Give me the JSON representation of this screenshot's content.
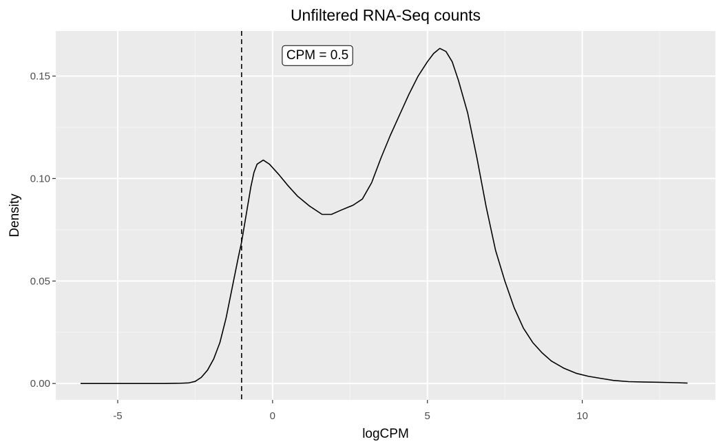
{
  "chart_data": {
    "type": "line",
    "title": "Unfiltered RNA-Seq counts",
    "xlabel": "logCPM",
    "ylabel": "Density",
    "xlim": [
      -7.0,
      14.3
    ],
    "ylim": [
      -0.008,
      0.172
    ],
    "x_ticks": [
      -5,
      0,
      5,
      10
    ],
    "x_tick_labels": [
      "-5",
      "0",
      "5",
      "10"
    ],
    "y_ticks": [
      0.0,
      0.05,
      0.1,
      0.15
    ],
    "y_tick_labels": [
      "0.00",
      "0.05",
      "0.10",
      "0.15"
    ],
    "grid": true,
    "legend": "none",
    "colors": {
      "panel_background": "#ebebeb",
      "grid_major": "#ffffff",
      "grid_minor": "#f5f5f5",
      "line": "#000000"
    },
    "vline": {
      "x": -1.0,
      "style": "dashed"
    },
    "annotation": {
      "text": "CPM = 0.5",
      "x": 1.45,
      "y": 0.16
    },
    "series": [
      {
        "x": [
          -6.2,
          -5.0,
          -4.0,
          -3.5,
          -3.0,
          -2.7,
          -2.5,
          -2.3,
          -2.1,
          -1.9,
          -1.7,
          -1.5,
          -1.3,
          -1.1,
          -1.0,
          -0.9,
          -0.8,
          -0.7,
          -0.6,
          -0.5,
          -0.3,
          -0.1,
          0.2,
          0.5,
          0.8,
          1.2,
          1.6,
          1.9,
          2.2,
          2.6,
          2.9,
          3.2,
          3.5,
          3.8,
          4.1,
          4.4,
          4.7,
          5.0,
          5.2,
          5.4,
          5.6,
          5.8,
          6.0,
          6.3,
          6.6,
          6.9,
          7.2,
          7.5,
          7.8,
          8.1,
          8.4,
          8.7,
          9.0,
          9.4,
          9.8,
          10.2,
          10.6,
          11.0,
          11.5,
          12.0,
          12.5,
          13.0,
          13.4
        ],
        "y": [
          0.0,
          0.0,
          0.0,
          0.0,
          0.0001,
          0.0003,
          0.001,
          0.003,
          0.0065,
          0.012,
          0.02,
          0.032,
          0.047,
          0.062,
          0.069,
          0.078,
          0.087,
          0.096,
          0.103,
          0.107,
          0.109,
          0.107,
          0.102,
          0.0965,
          0.0915,
          0.0865,
          0.0825,
          0.0825,
          0.0845,
          0.087,
          0.09,
          0.098,
          0.11,
          0.121,
          0.131,
          0.141,
          0.15,
          0.157,
          0.161,
          0.1635,
          0.162,
          0.157,
          0.148,
          0.132,
          0.11,
          0.086,
          0.065,
          0.05,
          0.037,
          0.027,
          0.02,
          0.015,
          0.011,
          0.0075,
          0.005,
          0.0035,
          0.0025,
          0.0015,
          0.0009,
          0.0007,
          0.0006,
          0.0004,
          0.0002
        ]
      }
    ]
  }
}
